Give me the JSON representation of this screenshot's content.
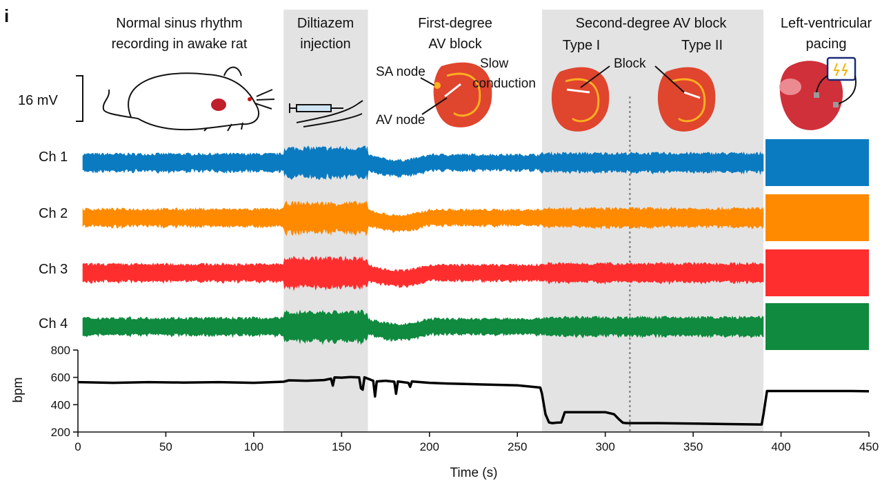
{
  "panel_letter": "i",
  "scale_bar": "16 mV",
  "phases": {
    "normal": [
      "Normal sinus rhythm",
      "recording in awake rat"
    ],
    "diltiazem": [
      "Diltiazem",
      "injection"
    ],
    "first_degree": [
      "First-degree",
      "AV block"
    ],
    "second_degree": "Second-degree AV block",
    "type1": "Type I",
    "type2": "Type II",
    "lv_pacing": [
      "Left-ventricular",
      "pacing"
    ]
  },
  "annotations": {
    "sa_node": "SA node",
    "av_node": "AV node",
    "slow_conduction": [
      "Slow",
      "conduction"
    ],
    "block": "Block"
  },
  "channels": [
    {
      "label": "Ch 1",
      "color": "#0a7bc1"
    },
    {
      "label": "Ch 2",
      "color": "#ff8a00"
    },
    {
      "label": "Ch 3",
      "color": "#ff2e2e"
    },
    {
      "label": "Ch 4",
      "color": "#0f8a3e"
    }
  ],
  "chart_data": {
    "type": "line",
    "xlabel": "Time (s)",
    "ylabel": "bpm",
    "xlim": [
      0,
      450
    ],
    "ylim": [
      200,
      800
    ],
    "x_ticks": [
      "0",
      "50",
      "100",
      "150",
      "200",
      "250",
      "300",
      "350",
      "400",
      "450"
    ],
    "y_ticks": [
      "200",
      "400",
      "600",
      "800"
    ],
    "shaded_regions": [
      {
        "label": "Diltiazem injection",
        "x": [
          117,
          165
        ]
      },
      {
        "label": "Second-degree AV block",
        "x": [
          264,
          390
        ]
      }
    ],
    "divider_x": 314,
    "series": [
      {
        "color": "#000000",
        "x": [
          0,
          20,
          40,
          60,
          80,
          100,
          117,
          120,
          130,
          140,
          144,
          145,
          146,
          150,
          155,
          160,
          161,
          162,
          163,
          165,
          168,
          169,
          170,
          175,
          180,
          181,
          182,
          185,
          188,
          189,
          190,
          195,
          200,
          210,
          220,
          230,
          240,
          250,
          263,
          264,
          266,
          268,
          270,
          272,
          275,
          277,
          280,
          290,
          300,
          305,
          308,
          310,
          312,
          314,
          330,
          350,
          370,
          389,
          390,
          392,
          400,
          420,
          440,
          450
        ],
        "y": [
          565,
          560,
          565,
          562,
          565,
          560,
          568,
          578,
          575,
          580,
          590,
          540,
          600,
          598,
          602,
          600,
          520,
          510,
          600,
          590,
          575,
          460,
          570,
          575,
          568,
          480,
          570,
          565,
          560,
          530,
          570,
          565,
          560,
          555,
          552,
          548,
          545,
          542,
          525,
          480,
          330,
          270,
          265,
          268,
          270,
          345,
          345,
          345,
          345,
          330,
          290,
          268,
          265,
          265,
          265,
          262,
          258,
          255,
          330,
          500,
          500,
          500,
          500,
          498
        ]
      }
    ]
  }
}
